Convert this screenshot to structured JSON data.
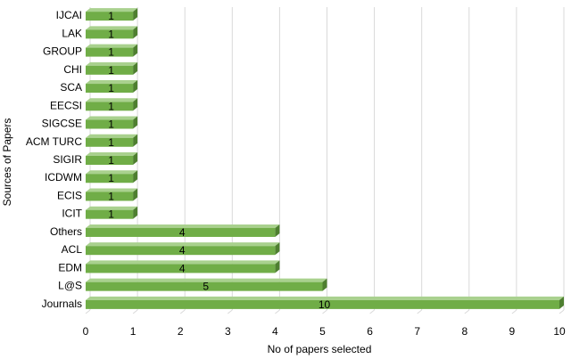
{
  "chart_data": {
    "type": "bar",
    "orientation": "horizontal",
    "style": "3d",
    "categories": [
      "IJCAI",
      "LAK",
      "GROUP",
      "CHI",
      "SCA",
      "EECSI",
      "SIGCSE",
      "ACM TURC",
      "SIGIR",
      "ICDWM",
      "ECIS",
      "ICIT",
      "Others",
      "ACL",
      "EDM",
      "L@S",
      "Journals"
    ],
    "values": [
      1,
      1,
      1,
      1,
      1,
      1,
      1,
      1,
      1,
      1,
      1,
      1,
      4,
      4,
      4,
      5,
      10
    ],
    "xlabel": "No of papers selected",
    "ylabel": "Sources of Papers",
    "xlim": [
      0,
      10
    ],
    "xticks": [
      "0",
      "1",
      "2",
      "3",
      "4",
      "5",
      "6",
      "7",
      "8",
      "9",
      "10"
    ],
    "grid": true,
    "legend": "none",
    "colors": {
      "bar_front": "#70ad47",
      "bar_top": "#a9d18e",
      "bar_side": "#4e7f30",
      "gridline": "#d9d9d9"
    }
  }
}
